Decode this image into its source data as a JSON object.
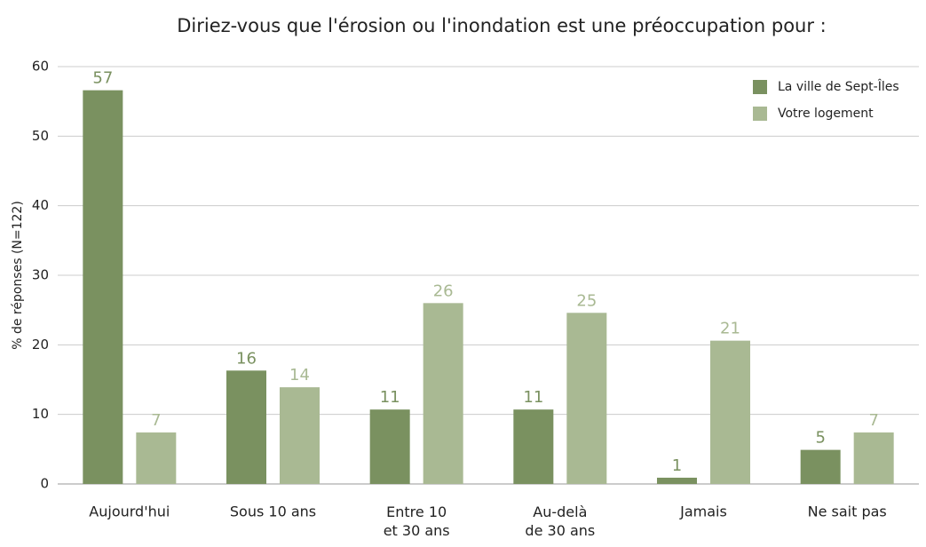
{
  "chart_data": {
    "type": "bar",
    "title": "Diriez-vous que l'érosion ou l'inondation est une préoccupation pour :",
    "ylabel": "% de réponses (N=122)",
    "categories": [
      "Aujourd'hui",
      "Sous 10 ans",
      "Entre 10\net 30 ans",
      "Au-delà\nde 30 ans",
      "Jamais",
      "Ne sait pas"
    ],
    "series": [
      {
        "name": "La ville de Sept-Îles",
        "color": "#7a9160",
        "values": [
          56.6,
          16.3,
          10.7,
          10.7,
          0.9,
          4.9
        ],
        "value_labels": [
          "57",
          "16",
          "11",
          "11",
          "1",
          "5"
        ]
      },
      {
        "name": "Votre logement",
        "color": "#a9b993",
        "values": [
          7.4,
          13.9,
          26.0,
          24.6,
          20.6,
          7.4
        ],
        "value_labels": [
          "7",
          "14",
          "26",
          "25",
          "21",
          "7"
        ]
      }
    ],
    "ylim": [
      0,
      60
    ],
    "yticks": [
      0,
      10,
      20,
      30,
      40,
      50,
      60
    ],
    "grid": true,
    "legend": "upper right"
  }
}
